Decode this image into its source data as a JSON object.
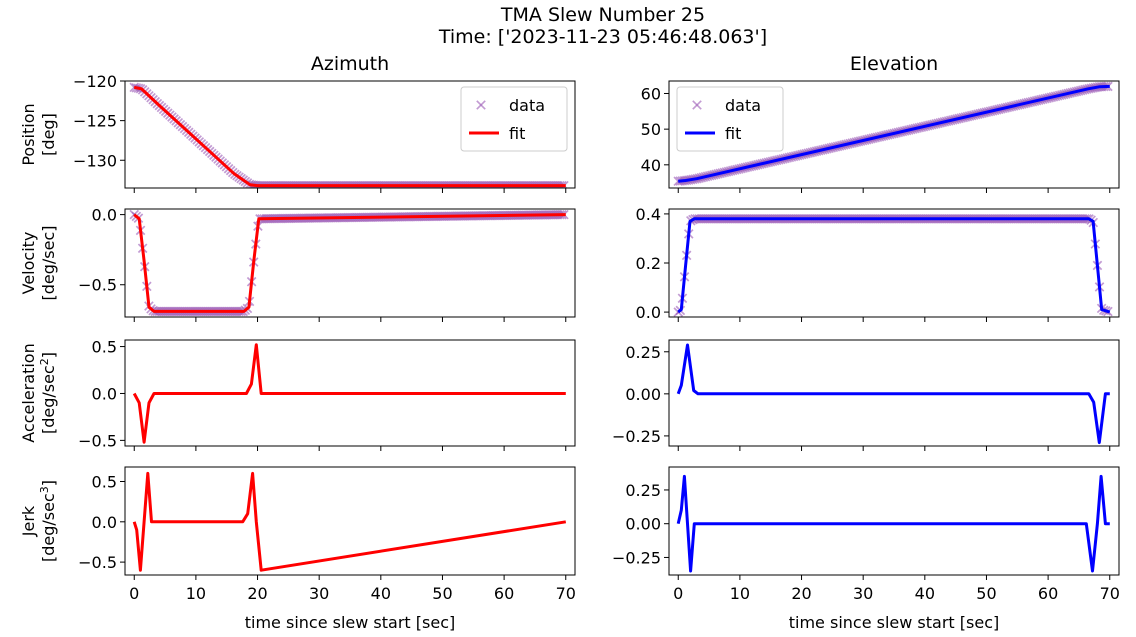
{
  "figure": {
    "title_line1": "TMA Slew Number 25",
    "title_line2": "Time: ['2023-11-23 05:46:48.063']"
  },
  "columns": [
    "Azimuth",
    "Elevation"
  ],
  "xlabel": "time since slew start [sec]",
  "rows": [
    {
      "ylabel1": "Position",
      "ylabel2": "[deg]"
    },
    {
      "ylabel1": "Velocity",
      "ylabel2": "[deg/sec]"
    },
    {
      "ylabel1": "Acceleration",
      "ylabel2": "[deg/sec",
      "ylabel2_sup": "2",
      "ylabel2_end": "]"
    },
    {
      "ylabel1": "Jerk",
      "ylabel2": "[deg/sec",
      "ylabel2_sup": "3",
      "ylabel2_end": "]"
    }
  ],
  "colors": {
    "data_marker": "#9b59b6",
    "az_fit": "#ff0000",
    "el_fit": "#0000ff"
  },
  "legend": {
    "data": "data",
    "fit": "fit"
  },
  "chart_data": [
    {
      "type": "scatter+line",
      "column": "Azimuth",
      "row": "Position",
      "xlim": [
        -1.5,
        71.5
      ],
      "ylim": [
        -133.5,
        -120
      ],
      "xticks": [
        0,
        10,
        20,
        30,
        40,
        50,
        60,
        70
      ],
      "yticks": [
        -120,
        -125,
        -130
      ],
      "ytick_labels": [
        "−120",
        "−125",
        "−130"
      ],
      "legend": "top-right",
      "fit_color": "#ff0000",
      "series": [
        {
          "name": "data",
          "x": [
            0,
            1.2,
            3.8,
            16.2,
            18.8,
            20,
            70
          ],
          "y": [
            -120.8,
            -121.0,
            -122.9,
            -131.7,
            -133.1,
            -133.2,
            -133.2
          ]
        },
        {
          "name": "fit",
          "x": [
            0,
            1.2,
            3.8,
            16.2,
            18.8,
            20,
            70
          ],
          "y": [
            -120.8,
            -121.0,
            -122.9,
            -131.7,
            -133.1,
            -133.2,
            -133.2
          ]
        }
      ]
    },
    {
      "type": "scatter+line",
      "column": "Elevation",
      "row": "Position",
      "xlim": [
        -1.5,
        71.5
      ],
      "ylim": [
        33.5,
        63.5
      ],
      "xticks": [
        0,
        10,
        20,
        30,
        40,
        50,
        60,
        70
      ],
      "yticks": [
        40,
        50,
        60
      ],
      "ytick_labels": [
        "40",
        "50",
        "60"
      ],
      "legend": "top-left",
      "fit_color": "#0000ff",
      "series": [
        {
          "name": "data",
          "x": [
            0,
            1.2,
            3.0,
            66.5,
            68.4,
            70
          ],
          "y": [
            35.4,
            35.6,
            36.1,
            61.3,
            61.9,
            62.0
          ]
        },
        {
          "name": "fit",
          "x": [
            0,
            1.2,
            3.0,
            66.5,
            68.4,
            70
          ],
          "y": [
            35.4,
            35.6,
            36.1,
            61.3,
            61.9,
            62.0
          ]
        }
      ]
    },
    {
      "type": "scatter+line",
      "column": "Azimuth",
      "row": "Velocity",
      "xlim": [
        -1.5,
        71.5
      ],
      "ylim": [
        -0.73,
        0.04
      ],
      "xticks": [
        0,
        10,
        20,
        30,
        40,
        50,
        60,
        70
      ],
      "yticks": [
        0.0,
        -0.5
      ],
      "ytick_labels": [
        "0.0",
        "−0.5"
      ],
      "fit_color": "#ff0000",
      "series": [
        {
          "name": "data",
          "x": [
            0,
            0.8,
            1.6,
            2.4,
            3.2,
            17.8,
            18.6,
            19.4,
            20.2,
            70
          ],
          "y": [
            0,
            -0.03,
            -0.33,
            -0.66,
            -0.69,
            -0.69,
            -0.66,
            -0.33,
            -0.03,
            0
          ]
        },
        {
          "name": "fit",
          "x": [
            0,
            0.8,
            1.6,
            2.4,
            3.2,
            17.8,
            18.6,
            19.4,
            20.2,
            70
          ],
          "y": [
            0,
            -0.03,
            -0.33,
            -0.66,
            -0.69,
            -0.69,
            -0.66,
            -0.33,
            -0.03,
            0
          ]
        }
      ]
    },
    {
      "type": "scatter+line",
      "column": "Elevation",
      "row": "Velocity",
      "xlim": [
        -1.5,
        71.5
      ],
      "ylim": [
        -0.02,
        0.42
      ],
      "xticks": [
        0,
        10,
        20,
        30,
        40,
        50,
        60,
        70
      ],
      "yticks": [
        0.0,
        0.2,
        0.4
      ],
      "ytick_labels": [
        "0.0",
        "0.2",
        "0.4"
      ],
      "fit_color": "#0000ff",
      "series": [
        {
          "name": "data",
          "x": [
            0,
            0.5,
            1.2,
            1.9,
            2.6,
            66.6,
            67.3,
            68.0,
            68.7,
            70
          ],
          "y": [
            0,
            0.01,
            0.19,
            0.37,
            0.38,
            0.38,
            0.37,
            0.19,
            0.01,
            0
          ]
        },
        {
          "name": "fit",
          "x": [
            0,
            0.5,
            1.2,
            1.9,
            2.6,
            66.6,
            67.3,
            68.0,
            68.7,
            70
          ],
          "y": [
            0,
            0.01,
            0.19,
            0.37,
            0.38,
            0.38,
            0.37,
            0.19,
            0.01,
            0
          ]
        }
      ]
    },
    {
      "type": "line",
      "column": "Azimuth",
      "row": "Acceleration",
      "xlim": [
        -1.5,
        71.5
      ],
      "ylim": [
        -0.56,
        0.57
      ],
      "xticks": [
        0,
        10,
        20,
        30,
        40,
        50,
        60,
        70
      ],
      "yticks": [
        0.5,
        0.0,
        -0.5
      ],
      "ytick_labels": [
        "0.5",
        "0.0",
        "−0.5"
      ],
      "fit_color": "#ff0000",
      "series": [
        {
          "name": "fit",
          "x": [
            0,
            0.8,
            1.6,
            2.4,
            3.2,
            18.2,
            19.0,
            19.8,
            20.6,
            70
          ],
          "y": [
            0,
            -0.1,
            -0.52,
            -0.1,
            0,
            0,
            0.1,
            0.52,
            0,
            0
          ]
        }
      ]
    },
    {
      "type": "line",
      "column": "Elevation",
      "row": "Acceleration",
      "xlim": [
        -1.5,
        71.5
      ],
      "ylim": [
        -0.31,
        0.32
      ],
      "xticks": [
        0,
        10,
        20,
        30,
        40,
        50,
        60,
        70
      ],
      "yticks": [
        0.25,
        0.0,
        -0.25
      ],
      "ytick_labels": [
        "0.25",
        "0.00",
        "−0.25"
      ],
      "fit_color": "#0000ff",
      "series": [
        {
          "name": "fit",
          "x": [
            0,
            0.5,
            1.5,
            2.5,
            3.2,
            66.6,
            67.4,
            68.3,
            69.3,
            70
          ],
          "y": [
            0,
            0.05,
            0.29,
            0.02,
            0,
            0,
            -0.05,
            -0.29,
            0,
            0
          ]
        }
      ]
    },
    {
      "type": "line",
      "column": "Azimuth",
      "row": "Jerk",
      "xlim": [
        -1.5,
        71.5
      ],
      "ylim": [
        -0.66,
        0.68
      ],
      "xticks": [
        0,
        10,
        20,
        30,
        40,
        50,
        60,
        70
      ],
      "yticks": [
        0.5,
        0.0,
        -0.5
      ],
      "ytick_labels": [
        "0.5",
        "0.0",
        "−0.5"
      ],
      "fit_color": "#ff0000",
      "series": [
        {
          "name": "fit",
          "x": [
            0,
            0.4,
            1.0,
            1.6,
            2.2,
            2.8,
            17.6,
            18.4,
            19.2,
            19.8,
            20.6,
            70
          ],
          "y": [
            0,
            -0.1,
            -0.6,
            0,
            0.6,
            0,
            0,
            0.1,
            0.6,
            0,
            -0.6,
            0
          ]
        }
      ]
    },
    {
      "type": "line",
      "column": "Elevation",
      "row": "Jerk",
      "xlim": [
        -1.5,
        71.5
      ],
      "ylim": [
        -0.38,
        0.42
      ],
      "xticks": [
        0,
        10,
        20,
        30,
        40,
        50,
        60,
        70
      ],
      "yticks": [
        0.25,
        0.0,
        -0.25
      ],
      "ytick_labels": [
        "0.25",
        "0.00",
        "−0.25"
      ],
      "fit_color": "#0000ff",
      "series": [
        {
          "name": "fit",
          "x": [
            0,
            0.5,
            1.0,
            1.5,
            2.0,
            2.6,
            66.2,
            67.2,
            68.0,
            68.6,
            69.3,
            70
          ],
          "y": [
            0,
            0.1,
            0.35,
            0,
            -0.35,
            0,
            0,
            -0.35,
            0,
            0.35,
            0,
            0
          ]
        }
      ]
    }
  ]
}
